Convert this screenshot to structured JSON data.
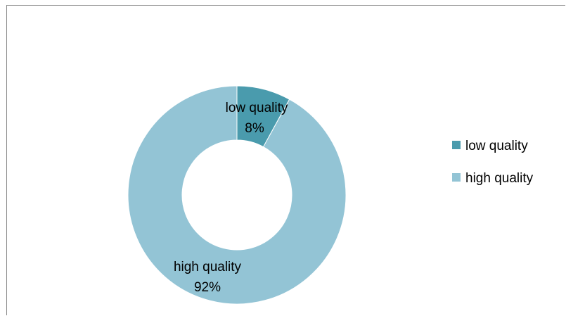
{
  "chart_data": {
    "type": "pie",
    "donut": true,
    "categories": [
      "low quality",
      "high quality"
    ],
    "values": [
      8,
      92
    ],
    "value_labels": [
      "8%",
      "92%"
    ],
    "colors": [
      "#4a9bad",
      "#93c4d5"
    ],
    "legend": {
      "position": "right",
      "entries": [
        "low quality",
        "high quality"
      ]
    }
  }
}
